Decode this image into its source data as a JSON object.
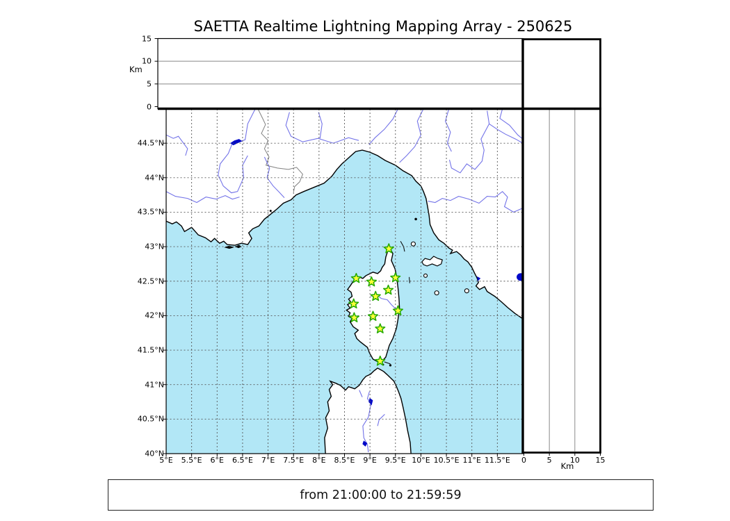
{
  "title": "SAETTA Realtime Lightning Mapping Array - 250625",
  "footer": {
    "text": "from 21:00:00 to 21:59:59"
  },
  "chart_data": {
    "type": "scatter",
    "title": "SAETTA Realtime Lightning Mapping Array - 250625",
    "subtitle": "from 21:00:00 to 21:59:59",
    "layout": "lightning-mapping-array composite: plan-view map (longitude/latitude) with altitude-vs-longitude panel on top and altitude-vs-latitude panel on right; both altitude panels are empty (no lightning sources in this hour)",
    "map_panel": {
      "xlim": [
        5,
        12
      ],
      "ylim": [
        40,
        45
      ],
      "x_tick_values": [
        5,
        5.5,
        6,
        6.5,
        7,
        7.5,
        8,
        8.5,
        9,
        9.5,
        10,
        10.5,
        11,
        11.5
      ],
      "x_tick_labels": [
        "5°E",
        "5.5°E",
        "6°E",
        "6.5°E",
        "7°E",
        "7.5°E",
        "8°E",
        "8.5°E",
        "9°E",
        "9.5°E",
        "10°E",
        "10.5°E",
        "11°E",
        "11.5°E"
      ],
      "y_tick_values": [
        44.5,
        44,
        43.5,
        43,
        42.5,
        42,
        41.5,
        41,
        40.5,
        40
      ],
      "y_tick_labels": [
        "44.5°N",
        "44°N",
        "43.5°N",
        "43°N",
        "42.5°N",
        "42°N",
        "41.5°N",
        "41°N",
        "40.5°N",
        "40°N"
      ],
      "grid": "dashed 0.5-degree graticule",
      "station_count": 12,
      "stations": [
        {
          "lon": 9.37,
          "lat": 42.97
        },
        {
          "lon": 8.73,
          "lat": 42.54
        },
        {
          "lon": 9.03,
          "lat": 42.49
        },
        {
          "lon": 9.5,
          "lat": 42.55
        },
        {
          "lon": 9.36,
          "lat": 42.37
        },
        {
          "lon": 9.11,
          "lat": 42.28
        },
        {
          "lon": 8.68,
          "lat": 42.17
        },
        {
          "lon": 9.55,
          "lat": 42.07
        },
        {
          "lon": 8.69,
          "lat": 41.97
        },
        {
          "lon": 9.06,
          "lat": 41.99
        },
        {
          "lon": 9.2,
          "lat": 41.81
        },
        {
          "lon": 9.2,
          "lat": 41.34
        }
      ],
      "lightning_sources_visible": 0
    },
    "alt_lon_panel": {
      "ylabel": "Km",
      "ylim": [
        0,
        15
      ],
      "y_tick_values": [
        15,
        10,
        5,
        0
      ],
      "y_tick_labels": [
        "15",
        "10",
        "5",
        "0"
      ],
      "data": "empty"
    },
    "alt_lat_panel": {
      "xlabel": "Km",
      "xlim": [
        0,
        15
      ],
      "x_tick_values": [
        0,
        5,
        10,
        15
      ],
      "x_tick_labels": [
        "0",
        "5",
        "10",
        "15"
      ],
      "data": "empty"
    }
  },
  "colors": {
    "sea": "#b2e7f6",
    "land": "#ffffff",
    "coast": "#000000",
    "river": "#7373e8",
    "country_border": "#808080",
    "graticule": "#555555",
    "panel_grid": "#888888",
    "station_fill": "#ffff38",
    "station_stroke": "#22a800",
    "lake": "#0008c8",
    "frame": "#000000"
  }
}
